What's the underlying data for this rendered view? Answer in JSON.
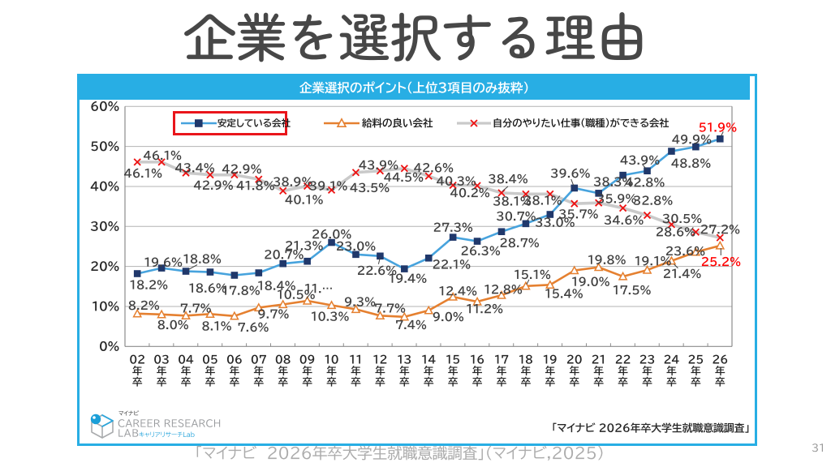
{
  "slide": {
    "title": "企業を選択する理由",
    "caption": "「マイナビ　2026年卒大学生就職意識調査」（マイナビ,2025）",
    "page_number": "31"
  },
  "panel": {
    "header": "企業選択のポイント（上位3項目のみ抜粋）",
    "accent_color": "#28AEE4",
    "source_note": "「マイナビ 2026年卒大学生就職意識調査」"
  },
  "logo": {
    "brand": "マイナビ",
    "name_line1": "CAREER RESEARCH",
    "name_line2": "LAB",
    "name_sub": "キャリアリサーチLab"
  },
  "chart_data": {
    "type": "line",
    "title": "企業選択のポイント（上位3項目のみ抜粋）",
    "xlabel": "",
    "ylabel": "",
    "ylim": [
      0,
      60
    ],
    "yticks": [
      "0%",
      "10%",
      "20%",
      "30%",
      "40%",
      "50%",
      "60%"
    ],
    "grid": true,
    "legend_position": "top-inside",
    "legend_highlight_box_color": "#E9151B",
    "categories": [
      "02年卒",
      "03年卒",
      "04年卒",
      "05年卒",
      "06年卒",
      "07年卒",
      "08年卒",
      "09年卒",
      "10年卒",
      "11年卒",
      "12年卒",
      "13年卒",
      "14年卒",
      "15年卒",
      "16年卒",
      "17年卒",
      "18年卒",
      "19年卒",
      "20年卒",
      "21年卒",
      "22年卒",
      "23年卒",
      "24年卒",
      "25年卒",
      "26年卒"
    ],
    "series": [
      {
        "name": "安定している会社",
        "marker": "square",
        "line_color": "#47A3DD",
        "marker_color": "#20386B",
        "legend_highlighted": true,
        "label_color": "#3F3F3F",
        "last_label_color": "#FF0000",
        "values": [
          18.2,
          19.6,
          18.8,
          18.6,
          17.8,
          18.4,
          20.7,
          21.3,
          26.0,
          23.0,
          22.6,
          19.4,
          22.1,
          27.3,
          26.3,
          28.7,
          30.7,
          33.0,
          39.6,
          38.3,
          42.8,
          43.9,
          48.8,
          49.9,
          51.9
        ],
        "labels": [
          "18.2%",
          "19.6%",
          "18.8%",
          "18.6%",
          "17.8%",
          "18.4%",
          "20.7%",
          "21.3%",
          "26.0%",
          "23.0%",
          "22.6%",
          "19.4%",
          "22.1%",
          "27.3%",
          "26.3%",
          "28.7%",
          "30.7%",
          "33.0%",
          "39.6%",
          "38.3%",
          "42.8%",
          "43.9%",
          "48.8%",
          "49.9%",
          "51.9%"
        ]
      },
      {
        "name": "給料の良い会社",
        "marker": "triangle-open",
        "line_color": "#E58030",
        "marker_color": "#E58030",
        "legend_highlighted": false,
        "label_color": "#3F3F3F",
        "last_label_color": "#FF0000",
        "values": [
          8.2,
          8.0,
          7.7,
          8.1,
          7.6,
          9.7,
          10.5,
          11.4,
          10.3,
          9.3,
          7.7,
          7.4,
          9.0,
          12.4,
          11.2,
          12.8,
          15.1,
          15.4,
          19.0,
          19.8,
          17.5,
          19.1,
          21.4,
          23.6,
          25.2
        ],
        "labels": [
          "8.2%",
          "8.0%",
          "7.7%",
          "8.1%",
          "7.6%",
          "9.7%",
          "10.5%",
          "11.…",
          "10.3%",
          "9.3%",
          "7.7%",
          "7.4%",
          "9.0%",
          "12.4%",
          "11.2%",
          "12.8%",
          "15.1%",
          "15.4%",
          "19.0%",
          "19.8%",
          "17.5%",
          "19.1%",
          "21.4%",
          "23.6%",
          "25.2%"
        ]
      },
      {
        "name": "自分のやりたい仕事（職種）ができる会社",
        "marker": "x",
        "line_color": "#CACACA",
        "marker_color": "#EE1111",
        "legend_highlighted": false,
        "label_color": "#3F3F3F",
        "last_label_color": "#3F3F3F",
        "values": [
          46.1,
          46.1,
          43.4,
          42.9,
          42.9,
          41.8,
          38.9,
          40.1,
          39.1,
          43.5,
          43.9,
          44.5,
          42.6,
          40.3,
          40.2,
          38.4,
          38.1,
          38.1,
          35.7,
          35.9,
          34.6,
          32.8,
          30.5,
          28.6,
          27.2
        ],
        "labels": [
          "46.1%",
          "46.1%",
          "43.4%",
          "42.9%",
          "42.9%",
          "41.8%",
          "38.9%",
          "40.1%",
          "39.1%",
          "43.5%",
          "43.9%",
          "44.5%",
          "42.6%",
          "40.3%",
          "40.2%",
          "38.4%",
          "38.1%",
          "38.1%",
          "35.7%",
          "35.9%",
          "34.6%",
          "32.8%",
          "30.5%",
          "28.6%",
          "27.2%"
        ]
      }
    ]
  }
}
